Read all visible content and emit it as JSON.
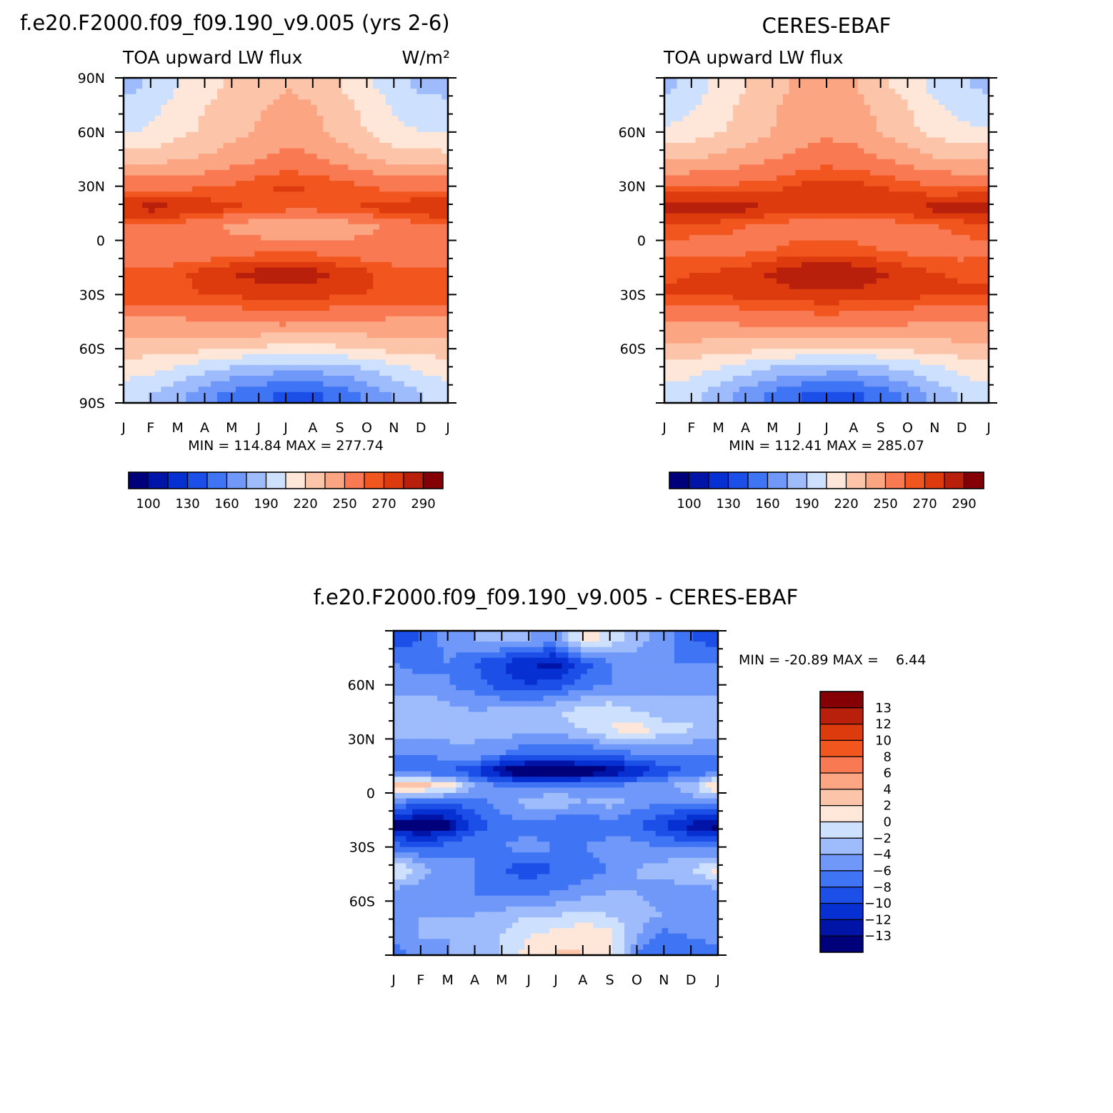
{
  "colors": {
    "palette": [
      "#00007a",
      "#0015a8",
      "#0730d2",
      "#1c4ee8",
      "#3f74f4",
      "#6f98f9",
      "#9ebbfb",
      "#cde0fd",
      "#fee6d8",
      "#fcc5aa",
      "#fba583",
      "#f97a52",
      "#f2561f",
      "#dd3a0e",
      "#b9200c",
      "#850005"
    ],
    "diff_palette": [
      "#00007a",
      "#0015a8",
      "#0730d2",
      "#1c4ee8",
      "#3f74f4",
      "#6f98f9",
      "#9ebbfb",
      "#cde0fd",
      "#fee6d8",
      "#fcc5aa",
      "#fba583",
      "#f97a52",
      "#f2561f",
      "#dd3a0e",
      "#b9200c",
      "#850005"
    ]
  },
  "chart_data": [
    {
      "type": "heatmap",
      "panel": "model",
      "title": "f.e20.F2000.f09_f09.190_v9.005 (yrs 2-6)",
      "subtitle_left": "TOA upward LW flux",
      "units": "W/m²",
      "x_ticks": [
        "J",
        "F",
        "M",
        "A",
        "M",
        "J",
        "J",
        "A",
        "S",
        "O",
        "N",
        "D",
        "J"
      ],
      "y_ticks": [
        "90N",
        "60N",
        "30N",
        "0",
        "30S",
        "60S",
        "90S"
      ],
      "ylim": [
        -90,
        90
      ],
      "stats": "MIN = 114.84 MAX = 277.74",
      "min": 114.84,
      "max": 277.74,
      "colorbar_labels": [
        "100",
        "130",
        "160",
        "190",
        "220",
        "250",
        "270",
        "290"
      ],
      "latitude_profile": [
        {
          "lat": 85,
          "months": [
            170,
            178,
            190,
            198,
            208,
            215,
            220,
            218,
            205,
            195,
            180,
            172,
            170
          ]
        },
        {
          "lat": 75,
          "months": [
            178,
            185,
            195,
            205,
            212,
            218,
            222,
            220,
            212,
            200,
            188,
            180,
            178
          ]
        },
        {
          "lat": 60,
          "months": [
            188,
            192,
            200,
            208,
            215,
            222,
            228,
            225,
            215,
            205,
            195,
            190,
            188
          ]
        },
        {
          "lat": 45,
          "months": [
            212,
            215,
            218,
            222,
            228,
            234,
            240,
            238,
            230,
            222,
            215,
            212,
            212
          ]
        },
        {
          "lat": 30,
          "months": [
            245,
            245,
            246,
            248,
            252,
            258,
            262,
            260,
            255,
            250,
            246,
            245,
            245
          ]
        },
        {
          "lat": 18,
          "months": [
            272,
            274,
            273,
            268,
            262,
            258,
            255,
            255,
            258,
            262,
            266,
            270,
            272
          ]
        },
        {
          "lat": 8,
          "months": [
            250,
            248,
            245,
            240,
            232,
            225,
            220,
            220,
            225,
            232,
            240,
            246,
            250
          ]
        },
        {
          "lat": -5,
          "months": [
            240,
            238,
            236,
            238,
            242,
            245,
            246,
            245,
            242,
            240,
            238,
            240,
            240
          ]
        },
        {
          "lat": -18,
          "months": [
            252,
            254,
            258,
            264,
            270,
            274,
            276,
            274,
            268,
            262,
            256,
            252,
            252
          ]
        },
        {
          "lat": -30,
          "months": [
            258,
            258,
            258,
            260,
            262,
            264,
            265,
            264,
            262,
            260,
            258,
            258,
            258
          ]
        },
        {
          "lat": -45,
          "months": [
            232,
            232,
            232,
            234,
            236,
            238,
            239,
            238,
            236,
            234,
            232,
            232,
            232
          ]
        },
        {
          "lat": -60,
          "months": [
            212,
            212,
            210,
            208,
            205,
            202,
            200,
            200,
            202,
            206,
            210,
            212,
            212
          ]
        },
        {
          "lat": -70,
          "months": [
            198,
            196,
            190,
            182,
            175,
            170,
            168,
            168,
            172,
            178,
            186,
            194,
            198
          ]
        },
        {
          "lat": -85,
          "months": [
            182,
            175,
            165,
            150,
            140,
            132,
            128,
            128,
            135,
            148,
            162,
            175,
            182
          ]
        }
      ]
    },
    {
      "type": "heatmap",
      "panel": "obs",
      "title": "CERES-EBAF",
      "subtitle_left": "TOA upward LW flux",
      "x_ticks": [
        "J",
        "F",
        "M",
        "A",
        "M",
        "J",
        "J",
        "A",
        "S",
        "O",
        "N",
        "D",
        "J"
      ],
      "y_ticks": [
        "60N",
        "30N",
        "0",
        "30S",
        "60S"
      ],
      "ylim": [
        -90,
        90
      ],
      "stats": "MIN = 112.41 MAX = 285.07",
      "min": 112.41,
      "max": 285.07,
      "colorbar_labels": [
        "100",
        "130",
        "160",
        "190",
        "220",
        "250",
        "270",
        "290"
      ],
      "latitude_profile": [
        {
          "lat": 85,
          "months": [
            172,
            180,
            195,
            205,
            215,
            222,
            226,
            222,
            210,
            198,
            185,
            176,
            172
          ]
        },
        {
          "lat": 75,
          "months": [
            180,
            188,
            198,
            208,
            218,
            225,
            228,
            225,
            215,
            205,
            192,
            184,
            180
          ]
        },
        {
          "lat": 60,
          "months": [
            192,
            196,
            204,
            212,
            220,
            228,
            232,
            230,
            220,
            210,
            200,
            194,
            192
          ]
        },
        {
          "lat": 45,
          "months": [
            218,
            220,
            224,
            228,
            234,
            240,
            244,
            242,
            236,
            228,
            222,
            218,
            218
          ]
        },
        {
          "lat": 30,
          "months": [
            250,
            250,
            251,
            253,
            256,
            262,
            266,
            264,
            260,
            255,
            251,
            250,
            250
          ]
        },
        {
          "lat": 18,
          "months": [
            278,
            280,
            278,
            274,
            270,
            266,
            264,
            264,
            266,
            270,
            274,
            277,
            278
          ]
        },
        {
          "lat": 8,
          "months": [
            258,
            256,
            254,
            250,
            246,
            242,
            240,
            240,
            242,
            246,
            250,
            254,
            258
          ]
        },
        {
          "lat": -5,
          "months": [
            245,
            244,
            244,
            246,
            250,
            254,
            255,
            254,
            250,
            246,
            244,
            244,
            245
          ]
        },
        {
          "lat": -18,
          "months": [
            258,
            260,
            262,
            266,
            272,
            278,
            280,
            278,
            272,
            266,
            261,
            258,
            258
          ]
        },
        {
          "lat": -30,
          "months": [
            262,
            262,
            262,
            263,
            265,
            267,
            268,
            267,
            265,
            263,
            262,
            262,
            262
          ]
        },
        {
          "lat": -45,
          "months": [
            236,
            236,
            236,
            238,
            240,
            242,
            243,
            242,
            240,
            238,
            236,
            236,
            236
          ]
        },
        {
          "lat": -60,
          "months": [
            214,
            214,
            212,
            210,
            207,
            204,
            202,
            202,
            204,
            208,
            212,
            214,
            214
          ]
        },
        {
          "lat": -70,
          "months": [
            200,
            198,
            192,
            184,
            176,
            172,
            170,
            170,
            174,
            180,
            188,
            196,
            200
          ]
        },
        {
          "lat": -85,
          "months": [
            185,
            178,
            168,
            152,
            140,
            130,
            126,
            126,
            134,
            148,
            164,
            178,
            185
          ]
        }
      ]
    },
    {
      "type": "heatmap",
      "panel": "difference",
      "title": "f.e20.F2000.f09_f09.190_v9.005 - CERES-EBAF",
      "x_ticks": [
        "J",
        "F",
        "M",
        "A",
        "M",
        "J",
        "J",
        "A",
        "S",
        "O",
        "N",
        "D",
        "J"
      ],
      "y_ticks": [
        "60N",
        "30N",
        "0",
        "30S",
        "60S"
      ],
      "ylim": [
        -90,
        90
      ],
      "stats": "MIN = -20.89 MAX =    6.44",
      "min": -20.89,
      "max": 6.44,
      "colorbar_labels": [
        "13",
        "12",
        "10",
        "8",
        "6",
        "4",
        "2",
        "0",
        "-2",
        "-4",
        "-6",
        "-8",
        "-10",
        "-12",
        "-13"
      ],
      "latitude_profile": [
        {
          "lat": 85,
          "months": [
            -9,
            -8,
            -5,
            -4,
            -3,
            -4,
            -5,
            1,
            -1,
            -3,
            -5,
            -8,
            -9
          ]
        },
        {
          "lat": 72,
          "months": [
            -6,
            -7,
            -6,
            -8,
            -10,
            -12,
            -13,
            -9,
            -6,
            -5,
            -6,
            -6,
            -6
          ]
        },
        {
          "lat": 60,
          "months": [
            -5,
            -5,
            -6,
            -7,
            -9,
            -10,
            -9,
            -7,
            -6,
            -5,
            -5,
            -5,
            -5
          ]
        },
        {
          "lat": 45,
          "months": [
            -2,
            -2,
            -3,
            -4,
            -3,
            -3,
            -2,
            -1,
            0,
            -2,
            -3,
            -2,
            -2
          ]
        },
        {
          "lat": 35,
          "months": [
            -3,
            -3,
            -3,
            -4,
            -3,
            -3,
            -3,
            -2,
            0,
            1,
            -1,
            -2,
            -3
          ]
        },
        {
          "lat": 22,
          "months": [
            -6,
            -6,
            -5,
            -4,
            -6,
            -8,
            -8,
            -8,
            -7,
            -6,
            -6,
            -6,
            -6
          ]
        },
        {
          "lat": 12,
          "months": [
            -7,
            -8,
            -8,
            -10,
            -14,
            -16,
            -16,
            -15,
            -14,
            -12,
            -9,
            -8,
            -7
          ]
        },
        {
          "lat": 4,
          "months": [
            3,
            3,
            2,
            -4,
            -6,
            -7,
            -6,
            -6,
            -6,
            -5,
            -4,
            -3,
            3
          ]
        },
        {
          "lat": -5,
          "months": [
            -6,
            -7,
            -8,
            -7,
            -5,
            -3,
            -2,
            -4,
            -3,
            -5,
            -6,
            -5,
            -6
          ]
        },
        {
          "lat": -18,
          "months": [
            -14,
            -15,
            -14,
            -9,
            -7,
            -7,
            -8,
            -8,
            -7,
            -8,
            -10,
            -13,
            -14
          ]
        },
        {
          "lat": -30,
          "months": [
            -7,
            -8,
            -7,
            -6,
            -6,
            -5,
            -6,
            -6,
            -5,
            -5,
            -6,
            -6,
            -7
          ]
        },
        {
          "lat": -42,
          "months": [
            1,
            -3,
            -5,
            -6,
            -8,
            -9,
            -8,
            -7,
            -6,
            -4,
            -3,
            -2,
            1
          ]
        },
        {
          "lat": -55,
          "months": [
            -5,
            -5,
            -6,
            -6,
            -7,
            -7,
            -6,
            -5,
            -4,
            -4,
            -5,
            -5,
            -5
          ]
        },
        {
          "lat": -68,
          "months": [
            -4,
            -4,
            -4,
            -4,
            -3,
            -2,
            -2,
            -1,
            -2,
            -3,
            -4,
            -4,
            -4
          ]
        },
        {
          "lat": -80,
          "months": [
            -5,
            -4,
            -4,
            -3,
            -2,
            0,
            1,
            2,
            1,
            -4,
            -7,
            -6,
            -5
          ]
        },
        {
          "lat": -88,
          "months": [
            -7,
            -5,
            -4,
            -3,
            -2,
            1,
            2,
            2,
            1,
            -6,
            -8,
            -7,
            -7
          ]
        }
      ]
    }
  ]
}
